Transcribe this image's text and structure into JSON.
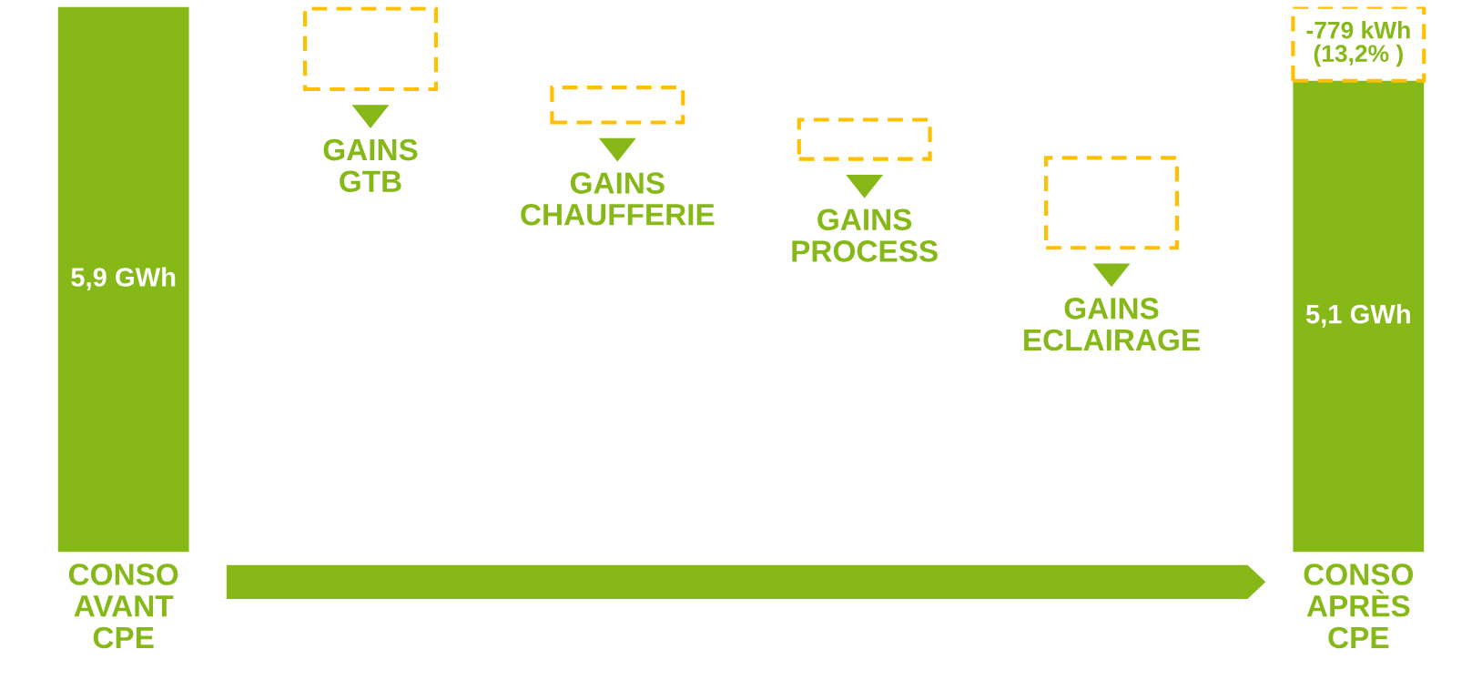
{
  "chart_data": {
    "type": "bar",
    "categories": [
      "CONSO\nAVANT\nCPE",
      "GAINS\nGTB",
      "GAINS\nCHAUFFERIE",
      "GAINS\nPROCESS",
      "GAINS\nECLAIRAGE",
      "CONSO\nAPRÈS\nCPE"
    ],
    "series": [
      {
        "color": "#86b817",
        "values": [
          5.9,
          null,
          null,
          null,
          null,
          5.1
        ],
        "value_labels": [
          "5,9 GWh",
          null,
          null,
          null,
          null,
          "5,1 GWh"
        ]
      }
    ],
    "annotations": [
      "-779 kWh\n(13,2% )"
    ]
  }
}
